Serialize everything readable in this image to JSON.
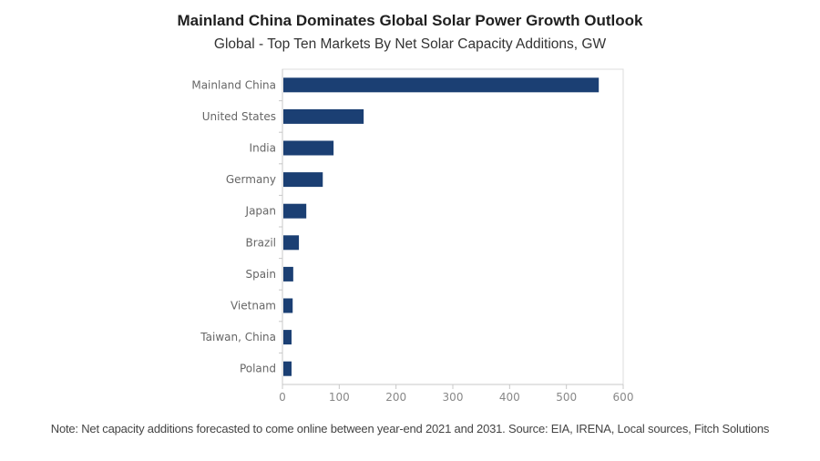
{
  "chart_data": {
    "type": "bar",
    "orientation": "horizontal",
    "title": "Mainland China Dominates Global Solar Power Growth Outlook",
    "subtitle": "Global - Top Ten Markets By Net Solar Capacity Additions, GW",
    "categories": [
      "Mainland China",
      "United States",
      "India",
      "Germany",
      "Japan",
      "Brazil",
      "Spain",
      "Vietnam",
      "Taiwan, China",
      "Poland"
    ],
    "values": [
      557,
      143,
      90,
      71,
      42,
      29,
      19,
      18,
      16,
      16
    ],
    "xlabel": "",
    "ylabel": "",
    "xlim": [
      0,
      600
    ],
    "xticks": [
      0,
      100,
      200,
      300,
      400,
      500,
      600
    ],
    "grid": false,
    "legend": "none",
    "bar_color": "#1b3f73",
    "note": "Note: Net capacity additions forecasted to come online between year-end 2021 and 2031. Source: EIA, IRENA, Local sources, Fitch Solutions"
  }
}
